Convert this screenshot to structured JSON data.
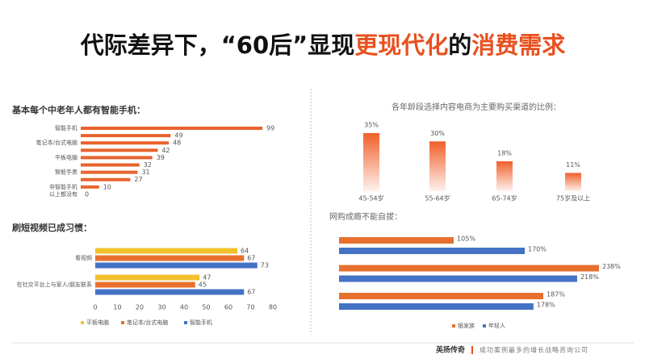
{
  "title_parts": [
    {
      "text": "代际差异下，“60后”显现",
      "color": "#111111"
    },
    {
      "text": "更现代化",
      "color": "#e8501e"
    },
    {
      "text": "的",
      "color": "#111111"
    },
    {
      "text": "消费需求",
      "color": "#e8501e"
    }
  ],
  "footer": {
    "brand": "英扬传奇",
    "slogan": "成功案例最多的增长战略咨询公司"
  },
  "chart_data": [
    {
      "type": "hbar",
      "title": "基本每个中老年人都有智能手机：",
      "categories": [
        "智能手机",
        null,
        "笔记本/台式电脑",
        null,
        "平板电脑",
        null,
        "智能手表",
        null,
        "非智能手机",
        "以上都没有"
      ],
      "values": [
        99,
        49,
        48,
        42,
        39,
        32,
        31,
        27,
        10,
        0
      ],
      "color": "#e8632e"
    },
    {
      "type": "grouped_hbar",
      "title": "刷短视频已成习惯：",
      "categories": [
        "看视频",
        "在社交平台上与家人/朋友联系"
      ],
      "series": [
        {
          "name": "平板电脑",
          "color": "#f2c12e",
          "values": [
            64,
            47
          ]
        },
        {
          "name": "笔记本/台式电脑",
          "color": "#e8702e",
          "values": [
            67,
            45
          ]
        },
        {
          "name": "智能手机",
          "color": "#4472c4",
          "values": [
            73,
            67
          ]
        }
      ],
      "xlim": [
        0,
        80
      ],
      "xticks": [
        0,
        10,
        20,
        30,
        40,
        50,
        60,
        70,
        80
      ],
      "legend": "bottom"
    },
    {
      "type": "bar",
      "title": "各年龄段选择内容电商为主要购买渠道的比例：",
      "categories": [
        "45-54岁",
        "55-64岁",
        "65-74岁",
        "75岁及以上"
      ],
      "values": [
        35,
        30,
        18,
        11
      ],
      "value_labels": [
        "35%",
        "30%",
        "18%",
        "11%"
      ],
      "color": "#f0602a"
    },
    {
      "type": "grouped_hbar",
      "title": "网购成瘾不能自拔：",
      "categories": [
        null,
        null,
        null
      ],
      "series": [
        {
          "name": "银发族",
          "color": "#e8702e",
          "values": [
            105,
            238,
            187
          ],
          "value_labels": [
            "105%",
            "238%",
            "187%"
          ]
        },
        {
          "name": "年轻人",
          "color": "#4472c4",
          "values": [
            170,
            218,
            178
          ],
          "value_labels": [
            "170%",
            "218%",
            "178%"
          ]
        }
      ],
      "legend": "bottom"
    }
  ]
}
